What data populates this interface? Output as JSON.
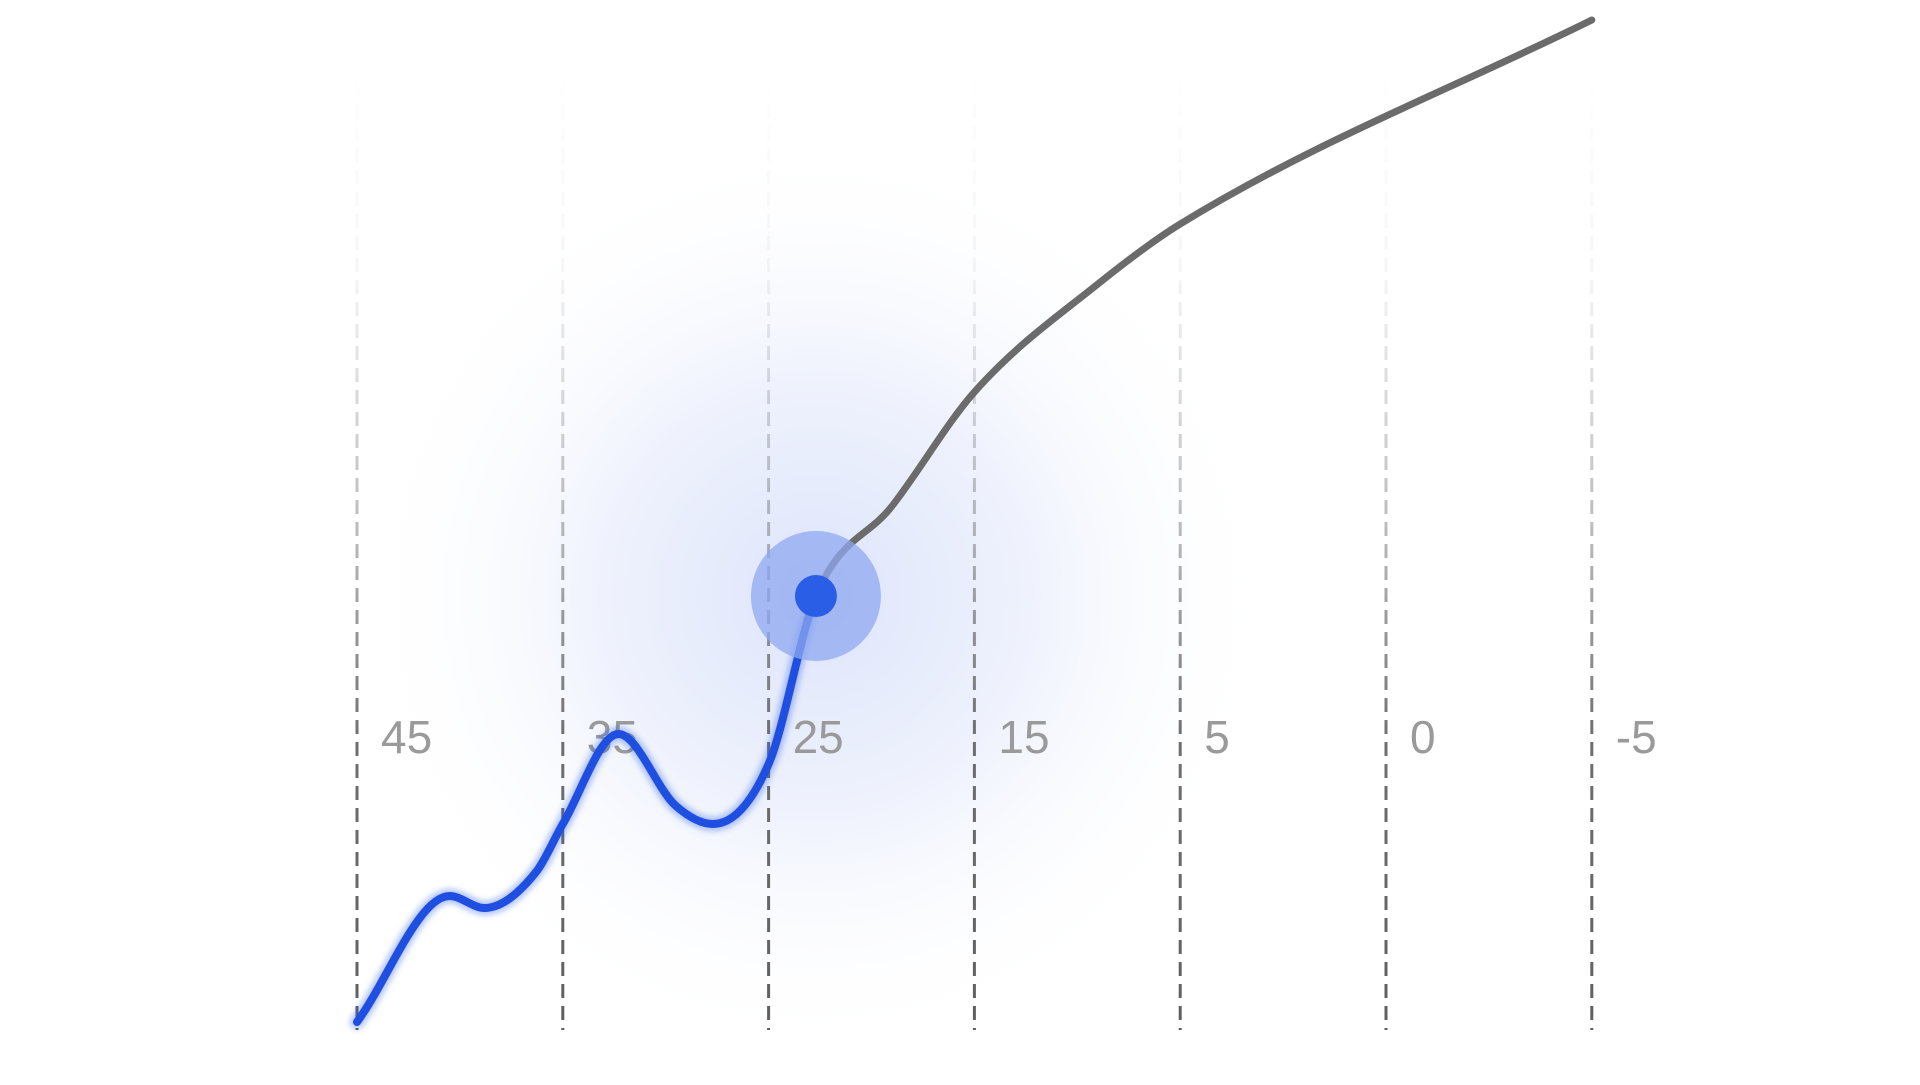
{
  "chart_data": {
    "type": "line",
    "title": "",
    "xlabel": "",
    "ylabel": "",
    "x_tick_labels": [
      "45",
      "35",
      "25",
      "15",
      "5",
      "0",
      "-5"
    ],
    "grid": {
      "vertical": true,
      "horizontal": false,
      "style": "dashed, fading toward top"
    },
    "axes_visible": false,
    "legend": "none",
    "series": [
      {
        "points": [
          {
            "x": 0.0,
            "y": 0.0
          },
          {
            "x": 0.45,
            "y": 0.21
          },
          {
            "x": 0.62,
            "y": 0.19
          },
          {
            "x": 0.87,
            "y": 0.25
          },
          {
            "x": 1.0,
            "y": 0.33
          },
          {
            "x": 1.27,
            "y": 0.48
          },
          {
            "x": 1.55,
            "y": 0.36
          },
          {
            "x": 1.73,
            "y": 0.33
          },
          {
            "x": 2.0,
            "y": 0.43
          },
          {
            "x": 2.23,
            "y": 0.71
          },
          {
            "x": 2.6,
            "y": 0.86
          },
          {
            "x": 3.0,
            "y": 1.05
          },
          {
            "x": 3.6,
            "y": 1.23
          },
          {
            "x": 4.0,
            "y": 1.33
          },
          {
            "x": 6.0,
            "y": 1.67
          }
        ]
      }
    ],
    "highlight": {
      "x": 2.23,
      "y": 0.71
    },
    "colors": {
      "completed": "#1f4fe0",
      "remaining": "#6b6b6b",
      "marker": "#2a5ee6",
      "halo": "#8fa8f0",
      "glow": "#e3e8fb",
      "grid": "#5f5f5f",
      "tick_label": "#9a9a9a"
    }
  }
}
